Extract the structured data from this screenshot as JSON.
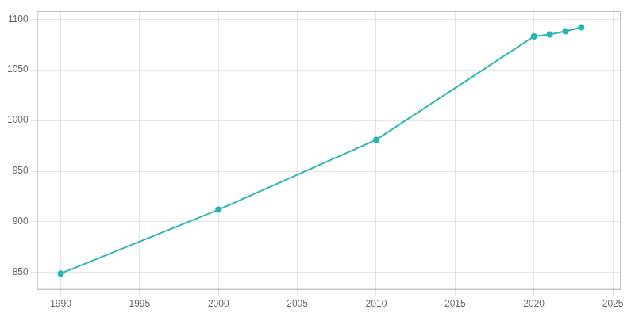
{
  "chart_data": {
    "type": "line",
    "x": [
      1990,
      2000,
      2010,
      2020,
      2021,
      2022,
      2023
    ],
    "values": [
      849,
      912,
      981,
      1083,
      1085,
      1088,
      1092
    ],
    "color": "#2ab5b5",
    "marker": "circle",
    "xlim": [
      1988.5,
      2025.5
    ],
    "ylim": [
      833,
      1108
    ],
    "xticks": [
      1990,
      1995,
      2000,
      2005,
      2010,
      2015,
      2020,
      2025
    ],
    "yticks": [
      850,
      900,
      950,
      1000,
      1050,
      1100
    ],
    "grid": true
  }
}
